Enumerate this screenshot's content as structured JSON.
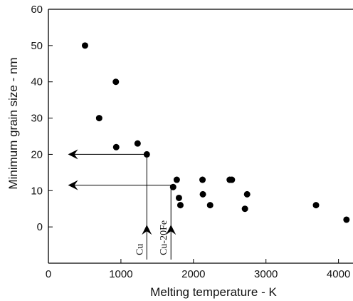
{
  "chart_data": {
    "type": "scatter",
    "title": "",
    "xlabel": "Melting temperature - K",
    "ylabel": "Minimum grain size - nm",
    "xlim": [
      0,
      4200
    ],
    "ylim": [
      -10,
      60
    ],
    "xticks": [
      0,
      1000,
      2000,
      3000,
      4000
    ],
    "yticks": [
      0,
      10,
      20,
      30,
      40,
      50,
      60
    ],
    "grid": false,
    "legend": "none",
    "marker_color": "#000000",
    "points": [
      {
        "x": 505,
        "y": 50
      },
      {
        "x": 700,
        "y": 30
      },
      {
        "x": 930,
        "y": 40
      },
      {
        "x": 935,
        "y": 22
      },
      {
        "x": 1230,
        "y": 23
      },
      {
        "x": 1357,
        "y": 20
      },
      {
        "x": 1720,
        "y": 11
      },
      {
        "x": 1770,
        "y": 13
      },
      {
        "x": 1800,
        "y": 8
      },
      {
        "x": 1820,
        "y": 6
      },
      {
        "x": 2125,
        "y": 13
      },
      {
        "x": 2130,
        "y": 9
      },
      {
        "x": 2230,
        "y": 6
      },
      {
        "x": 2500,
        "y": 13
      },
      {
        "x": 2530,
        "y": 13
      },
      {
        "x": 2710,
        "y": 5
      },
      {
        "x": 2740,
        "y": 9
      },
      {
        "x": 3690,
        "y": 6
      },
      {
        "x": 4110,
        "y": 2
      }
    ],
    "annotations": [
      {
        "label": "Cu",
        "x": 1357,
        "y_from": -9,
        "y_to": 20,
        "y_target": 20
      },
      {
        "label": "Cu-20Fe",
        "x": 1690,
        "y_from": -9,
        "y_to": 11.5,
        "y_target": 11.5
      }
    ]
  }
}
